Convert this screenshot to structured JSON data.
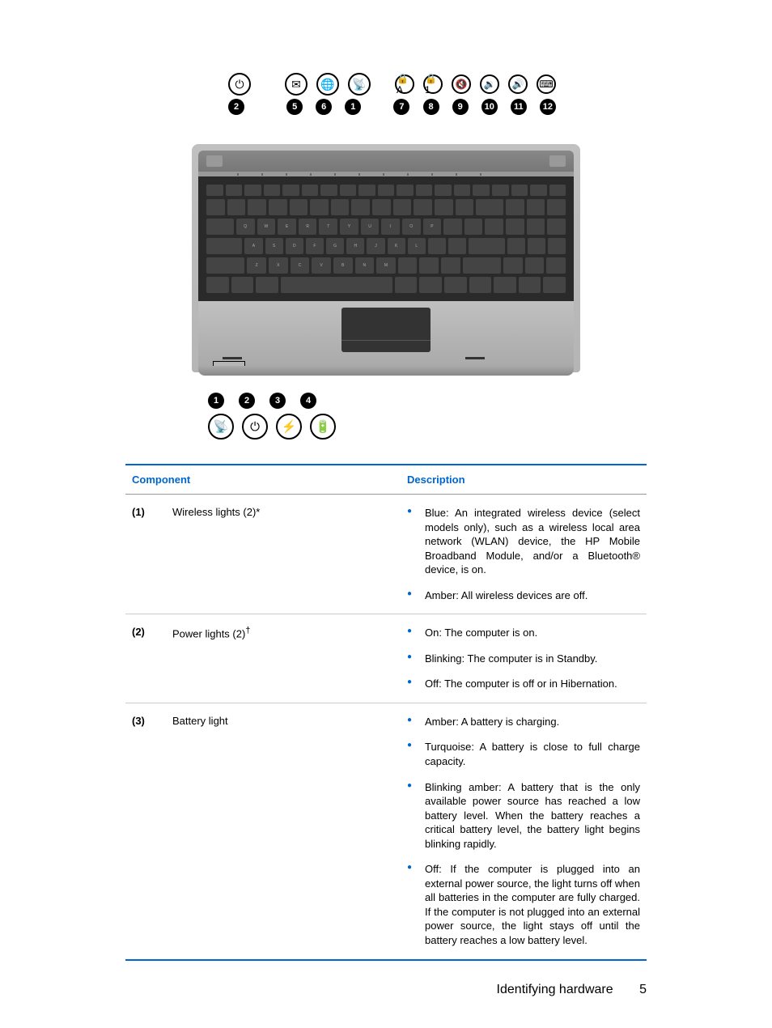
{
  "diagram": {
    "top_icons": [
      "⏻",
      "✉",
      "🌐",
      "📡",
      "🔒A",
      "🔒1",
      "🔇",
      "🔉",
      "🔊",
      "⌨"
    ],
    "top_numbers": [
      "2",
      "5",
      "6",
      "1",
      "7",
      "8",
      "9",
      "10",
      "11",
      "12"
    ],
    "bottom_numbers": [
      "1",
      "2",
      "3",
      "4"
    ],
    "bottom_icons": [
      "📡",
      "⏻",
      "⚡",
      "🔋"
    ]
  },
  "table": {
    "headers": {
      "component": "Component",
      "description": "Description"
    },
    "rows": [
      {
        "num": "(1)",
        "name": "Wireless lights (2)*",
        "desc": [
          "Blue: An integrated wireless device (select models only), such as a wireless local area network (WLAN) device, the HP Mobile Broadband Module, and/or a Bluetooth® device, is on.",
          "Amber: All wireless devices are off."
        ]
      },
      {
        "num": "(2)",
        "name": "Power lights (2)†",
        "desc": [
          "On: The computer is on.",
          "Blinking: The computer is in Standby.",
          "Off: The computer is off or in Hibernation."
        ]
      },
      {
        "num": "(3)",
        "name": "Battery light",
        "desc": [
          "Amber: A battery is charging.",
          "Turquoise: A battery is close to full charge capacity.",
          "Blinking amber: A battery that is the only available power source has reached a low battery level. When the battery reaches a critical battery level, the battery light begins blinking rapidly.",
          "Off: If the computer is plugged into an external power source, the light turns off when all batteries in the computer are fully charged. If the computer is not plugged into an external power source, the light stays off until the battery reaches a low battery level."
        ]
      }
    ]
  },
  "footer": {
    "section": "Identifying hardware",
    "page": "5"
  },
  "colors": {
    "accent": "#0066cc",
    "text": "#000000",
    "border_light": "#cccccc",
    "border_mid": "#999999"
  }
}
